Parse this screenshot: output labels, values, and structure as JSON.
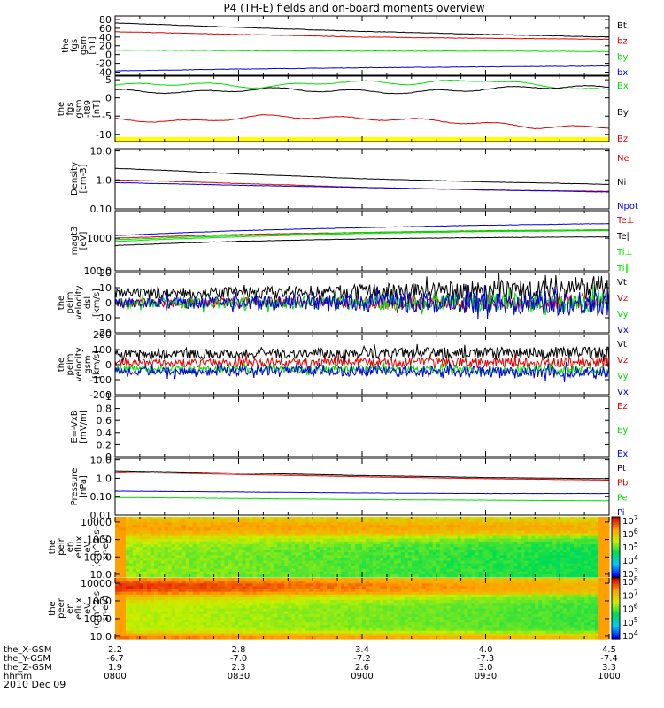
{
  "title": "P4 (TH-E) fields and on-board moments overview",
  "date": "2010 Dec 09",
  "colors": {
    "black": "#000000",
    "red": "#e00000",
    "green": "#00dd00",
    "blue": "#0000e0",
    "yellow": "#ffff00"
  },
  "chart_data": [
    {
      "id": "fgs_gsm",
      "type": "line",
      "ylabel": [
        "the",
        "fgs",
        "gsm",
        "[nT]"
      ],
      "yticks": [
        -40,
        -20,
        0,
        20,
        40,
        60,
        80
      ],
      "ylim": [
        -47,
        88
      ],
      "series": [
        {
          "name": "Bt",
          "color": "black",
          "x": [
            0,
            0.25,
            0.5,
            0.75,
            1
          ],
          "y": [
            72,
            62,
            53,
            46,
            40
          ]
        },
        {
          "name": "bz",
          "color": "red",
          "x": [
            0,
            0.25,
            0.5,
            0.75,
            1
          ],
          "y": [
            52,
            46,
            40,
            37,
            35
          ]
        },
        {
          "name": "by",
          "color": "green",
          "x": [
            0,
            0.25,
            0.5,
            0.75,
            1
          ],
          "y": [
            10,
            9,
            8,
            8,
            7
          ]
        },
        {
          "name": "bx",
          "color": "blue",
          "x": [
            0,
            0.25,
            0.5,
            0.75,
            1
          ],
          "y": [
            -37,
            -33,
            -30,
            -28,
            -26
          ]
        }
      ]
    },
    {
      "id": "fgs_gsm_dp",
      "type": "line",
      "ylabel": [
        "the",
        "fgs",
        "gsm",
        "-t89",
        "[nT]"
      ],
      "yticks": [
        -10,
        -5,
        0,
        5
      ],
      "ylim": [
        -12,
        6
      ],
      "series": [
        {
          "name": "Bx",
          "color": "green",
          "x": [
            0,
            0.15,
            0.3,
            0.45,
            0.6,
            0.75,
            0.85,
            1
          ],
          "y": [
            3.5,
            4,
            3,
            4.5,
            4,
            5,
            3.5,
            2
          ]
        },
        {
          "name": "By",
          "color": "black",
          "x": [
            0,
            0.15,
            0.3,
            0.45,
            0.6,
            0.75,
            0.85,
            1
          ],
          "y": [
            2,
            1.5,
            2.5,
            2,
            1.5,
            2.5,
            3,
            3
          ]
        },
        {
          "name": "Bz",
          "color": "red",
          "x": [
            0,
            0.15,
            0.3,
            0.45,
            0.6,
            0.75,
            0.85,
            1
          ],
          "y": [
            -6,
            -6.5,
            -5,
            -5.5,
            -6,
            -7,
            -8,
            -8
          ]
        }
      ]
    },
    {
      "id": "density",
      "type": "line",
      "log": true,
      "ylabel": [
        "Density",
        "[cm-3]"
      ],
      "yticks": [
        0.1,
        1.0,
        10.0
      ],
      "ylim": [
        0.1,
        12
      ],
      "series": [
        {
          "name": "Ne",
          "color": "red",
          "x": [
            0,
            0.25,
            0.5,
            0.75,
            1
          ],
          "y": [
            1.0,
            0.75,
            0.55,
            0.45,
            0.4
          ]
        },
        {
          "name": "Ni",
          "color": "black",
          "x": [
            0,
            0.25,
            0.5,
            0.75,
            1
          ],
          "y": [
            2.5,
            1.6,
            1.1,
            0.85,
            0.7
          ]
        },
        {
          "name": "Npot",
          "color": "blue",
          "x": [
            0,
            0.25,
            0.5,
            0.75,
            1
          ],
          "y": [
            0.8,
            0.65,
            0.55,
            0.45,
            0.38
          ]
        }
      ]
    },
    {
      "id": "temperature",
      "type": "line",
      "log": true,
      "ylabel": [
        "magt3",
        "[eV]"
      ],
      "yticks": [
        100,
        1000
      ],
      "ylim": [
        100,
        7000
      ],
      "series": [
        {
          "name": "Te⊥",
          "color": "red",
          "x": [
            0,
            0.25,
            0.5,
            0.75,
            1
          ],
          "y": [
            1000,
            1300,
            1500,
            1700,
            1800
          ]
        },
        {
          "name": "Te∥",
          "color": "black",
          "x": [
            0,
            0.25,
            0.5,
            0.75,
            1
          ],
          "y": [
            600,
            800,
            950,
            1050,
            1100
          ]
        },
        {
          "name": "Ti⊥",
          "color": "green",
          "x": [
            0,
            0.25,
            0.5,
            0.75,
            1
          ],
          "y": [
            900,
            1200,
            1500,
            1700,
            1800
          ]
        },
        {
          "name": "Ti∥",
          "color": "green",
          "x": [
            0,
            0.25,
            0.5,
            0.75,
            1
          ],
          "y": [
            800,
            1100,
            1400,
            1600,
            1700
          ]
        },
        {
          "name": "",
          "color": "blue",
          "x": [
            0,
            0.25,
            0.5,
            0.75,
            1
          ],
          "y": [
            1200,
            1700,
            2100,
            2500,
            2800
          ]
        }
      ]
    },
    {
      "id": "peim_velocity_dsl",
      "type": "line",
      "noise": true,
      "ylabel": [
        "the",
        "peim",
        "velocity",
        "dsl",
        "[km/s]"
      ],
      "yticks": [
        -20,
        -10,
        0,
        10,
        20
      ],
      "ylim": [
        -20,
        20
      ],
      "series": [
        {
          "name": "Vt",
          "color": "black",
          "x": [
            0,
            0.5,
            1
          ],
          "y": [
            6,
            7,
            10
          ],
          "amp": [
            3,
            5,
            8
          ]
        },
        {
          "name": "Vz",
          "color": "red",
          "x": [
            0,
            0.5,
            1
          ],
          "y": [
            0,
            0,
            0
          ],
          "amp": [
            3,
            4,
            5
          ]
        },
        {
          "name": "Vy",
          "color": "green",
          "x": [
            0,
            0.5,
            1
          ],
          "y": [
            0,
            0,
            0
          ],
          "amp": [
            3,
            5,
            7
          ]
        },
        {
          "name": "Vx",
          "color": "blue",
          "x": [
            0,
            0.5,
            1
          ],
          "y": [
            0,
            0,
            0
          ],
          "amp": [
            3,
            6,
            9
          ]
        }
      ]
    },
    {
      "id": "peim_velocity_gsm",
      "type": "line",
      "noise": true,
      "ylabel": [
        "the",
        "peim",
        "velocity",
        "gsm",
        "[km/s]"
      ],
      "yticks": [
        -200,
        -100,
        0,
        100,
        200
      ],
      "ylim": [
        -200,
        200
      ],
      "series": [
        {
          "name": "Vt",
          "color": "black",
          "x": [
            0,
            0.5,
            1
          ],
          "y": [
            70,
            75,
            80
          ],
          "amp": [
            30,
            35,
            40
          ]
        },
        {
          "name": "Vz",
          "color": "red",
          "x": [
            0,
            0.5,
            1
          ],
          "y": [
            10,
            15,
            15
          ],
          "amp": [
            25,
            30,
            35
          ]
        },
        {
          "name": "Vy",
          "color": "green",
          "x": [
            0,
            0.5,
            1
          ],
          "y": [
            -30,
            -30,
            -35
          ],
          "amp": [
            25,
            25,
            30
          ]
        },
        {
          "name": "Vx",
          "color": "blue",
          "x": [
            0,
            0.5,
            1
          ],
          "y": [
            -40,
            -45,
            -50
          ],
          "amp": [
            30,
            35,
            40
          ]
        }
      ]
    },
    {
      "id": "efield",
      "type": "line",
      "ylabel": [
        "E=-VxB",
        "[mV/m]"
      ],
      "yticks": [
        0.0,
        0.2,
        0.4,
        0.6,
        0.8,
        1.0
      ],
      "ylim": [
        0,
        1
      ],
      "series": [
        {
          "name": "Ez",
          "color": "red",
          "x": [],
          "y": []
        },
        {
          "name": "Ey",
          "color": "green",
          "x": [],
          "y": []
        },
        {
          "name": "Ex",
          "color": "blue",
          "x": [],
          "y": []
        }
      ]
    },
    {
      "id": "pressure",
      "type": "line",
      "log": true,
      "ylabel": [
        "Pressure",
        "[nPa]"
      ],
      "yticks": [
        0.01,
        0.1,
        1.0,
        10.0
      ],
      "ylim": [
        0.01,
        12
      ],
      "series": [
        {
          "name": "Pt",
          "color": "black",
          "x": [
            0,
            0.25,
            0.5,
            0.75,
            1
          ],
          "y": [
            2.5,
            1.9,
            1.4,
            1.1,
            0.95
          ]
        },
        {
          "name": "Pb",
          "color": "red",
          "x": [
            0,
            0.25,
            0.5,
            0.75,
            1
          ],
          "y": [
            2.1,
            1.6,
            1.2,
            0.95,
            0.8
          ]
        },
        {
          "name": "Pe",
          "color": "green",
          "x": [
            0,
            0.25,
            0.5,
            0.75,
            1
          ],
          "y": [
            0.09,
            0.08,
            0.07,
            0.065,
            0.06
          ]
        },
        {
          "name": "Pi",
          "color": "blue",
          "x": [
            0,
            0.25,
            0.5,
            0.75,
            1
          ],
          "y": [
            0.2,
            0.18,
            0.16,
            0.15,
            0.15
          ]
        }
      ]
    },
    {
      "id": "peir_en_eflux",
      "type": "heatmap",
      "ylabel": [
        "the",
        "peir",
        "en",
        "eflux",
        "eV",
        "(cm^2-s-",
        "sr-eV)"
      ],
      "yticks": [
        10,
        100,
        1000,
        10000
      ],
      "ylim": [
        7,
        20000
      ],
      "colorbar": {
        "labels": [
          "10^7",
          "10^6",
          "10^5",
          "10^4",
          "10^3"
        ]
      }
    },
    {
      "id": "peer_en_eflux",
      "type": "heatmap",
      "ylabel": [
        "the",
        "peer",
        "en",
        "eflux",
        "eV",
        "(cm^2-s-",
        "sr-eV)"
      ],
      "yticks": [
        10,
        100,
        1000,
        10000
      ],
      "ylim": [
        7,
        20000
      ],
      "colorbar": {
        "labels": [
          "10^8",
          "10^7",
          "10^6",
          "10^5",
          "10^4"
        ]
      }
    }
  ],
  "xaxis": {
    "rows": [
      {
        "label": "the_X-GSM",
        "values": [
          "2.2",
          "2.8",
          "3.4",
          "4.0",
          "4.5"
        ]
      },
      {
        "label": "the_Y-GSM",
        "values": [
          "-6.7",
          "-7.0",
          "-7.2",
          "-7.3",
          "-7.4"
        ]
      },
      {
        "label": "the_Z-GSM",
        "values": [
          "1.9",
          "2.3",
          "2.6",
          "3.0",
          "3.3"
        ]
      },
      {
        "label": "hhmm",
        "values": [
          "0800",
          "0830",
          "0900",
          "0930",
          "1000"
        ]
      }
    ]
  }
}
